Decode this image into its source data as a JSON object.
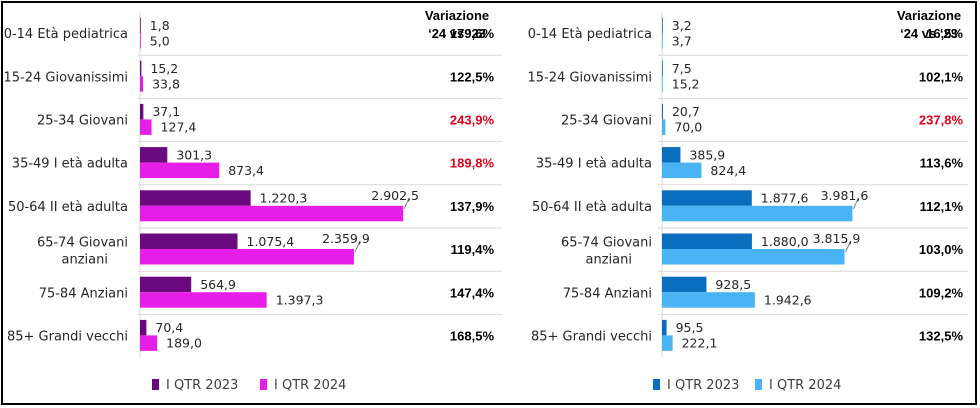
{
  "chart_data": [
    {
      "type": "bar",
      "orientation": "horizontal",
      "categories": [
        "0-14 Età pediatrica",
        "15-24 Giovanissimi",
        "25-34 Giovani",
        "35-49 I età adulta",
        "50-64 II età adulta",
        "65-74 Giovani anziani",
        "75-84 Anziani",
        "85+ Grandi vecchi"
      ],
      "series": [
        {
          "name": "I QTR 2023",
          "color": "#6a0a7e",
          "values": [
            1.8,
            15.2,
            37.1,
            301.3,
            1220.3,
            1075.4,
            564.9,
            70.4
          ],
          "labels": [
            "1,8",
            "15,2",
            "37,1",
            "301,3",
            "1.220,3",
            "1.075,4",
            "564,9",
            "70,4"
          ]
        },
        {
          "name": "I QTR 2024",
          "color": "#e61ee8",
          "values": [
            5.0,
            33.8,
            127.4,
            873.4,
            2902.5,
            2359.9,
            1397.3,
            189.0
          ],
          "labels": [
            "5,0",
            "33,8",
            "127,4",
            "873,4",
            "2.902,5",
            "2.359,9",
            "1.397,3",
            "189,0"
          ]
        }
      ],
      "variation_header": "Variazione ‘24 vs ‘23",
      "variation": [
        "179,6%",
        "122,5%",
        "243,9%",
        "189,8%",
        "137,9%",
        "119,4%",
        "147,4%",
        "168,5%"
      ],
      "variation_highlight": [
        false,
        false,
        true,
        true,
        false,
        false,
        false,
        false
      ],
      "highlight_color": "#e8001c",
      "xlim": [
        0,
        3000
      ],
      "legend": "bottom"
    },
    {
      "type": "bar",
      "orientation": "horizontal",
      "categories": [
        "0-14 Età pediatrica",
        "15-24 Giovanissimi",
        "25-34 Giovani",
        "35-49 I età adulta",
        "50-64 II età adulta",
        "65-74 Giovani anziani",
        "75-84 Anziani",
        "85+ Grandi vecchi"
      ],
      "series": [
        {
          "name": "I QTR 2023",
          "color": "#0a6ebf",
          "values": [
            3.2,
            7.5,
            20.7,
            385.9,
            1877.6,
            1880.0,
            928.5,
            95.5
          ],
          "labels": [
            "3,2",
            "7,5",
            "20,7",
            "385,9",
            "1.877,6",
            "1.880,0",
            "928,5",
            "95,5"
          ]
        },
        {
          "name": "I QTR 2024",
          "color": "#4ab3f4",
          "values": [
            3.7,
            15.2,
            70.0,
            824.4,
            3981.6,
            3815.9,
            1942.6,
            222.1
          ],
          "labels": [
            "3,7",
            "15,2",
            "70,0",
            "824,4",
            "3.981,6",
            "3.815,9",
            "1.942,6",
            "222,1"
          ]
        }
      ],
      "variation_header": "Variazione ‘24 vs ‘23",
      "variation": [
        "16,5%",
        "102,1%",
        "237,8%",
        "113,6%",
        "112,1%",
        "103,0%",
        "109,2%",
        "132,5%"
      ],
      "variation_highlight": [
        false,
        false,
        true,
        false,
        false,
        false,
        false,
        false
      ],
      "highlight_color": "#e8001c",
      "xlim": [
        0,
        4600
      ],
      "legend": "bottom"
    }
  ]
}
